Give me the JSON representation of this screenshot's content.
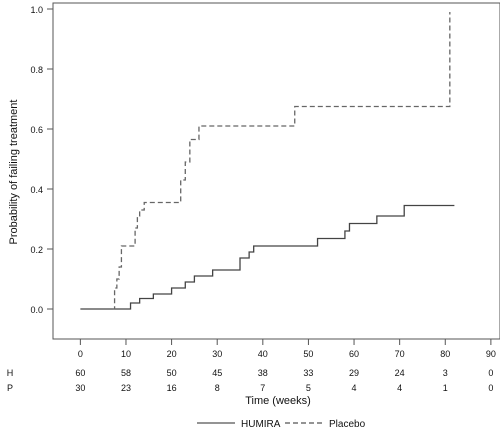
{
  "chart_data": {
    "type": "line",
    "step": true,
    "ylabel": "Probability of failing treatment",
    "xlabel": "Time (weeks)",
    "xlim": [
      -6,
      92
    ],
    "ylim": [
      -0.1,
      1.02
    ],
    "xticks": [
      0,
      10,
      20,
      30,
      40,
      50,
      60,
      70,
      80,
      90
    ],
    "yticks": [
      0.0,
      0.2,
      0.4,
      0.6,
      0.8,
      1.0
    ],
    "ytick_labels": [
      "0.0",
      "0.2",
      "0.4",
      "0.6",
      "0.8",
      "1.0"
    ],
    "grid": false,
    "legend_position": "bottom",
    "series": [
      {
        "name": "HUMIRA",
        "style": "solid",
        "color": "#444444",
        "x": [
          0,
          10,
          11,
          13,
          16,
          20,
          23,
          25,
          29,
          35,
          37,
          38,
          39,
          46,
          52,
          58,
          59,
          65,
          71,
          82
        ],
        "y": [
          0.0,
          0.0,
          0.02,
          0.035,
          0.05,
          0.07,
          0.09,
          0.11,
          0.13,
          0.17,
          0.19,
          0.21,
          0.21,
          0.21,
          0.235,
          0.26,
          0.285,
          0.31,
          0.345,
          0.345
        ]
      },
      {
        "name": "Placebo",
        "style": "dashed",
        "color": "#666666",
        "x": [
          7,
          7.5,
          8,
          8.5,
          9,
          11,
          12,
          12.5,
          13,
          14,
          21,
          22,
          23,
          24,
          26,
          29,
          46,
          47,
          60,
          80,
          81
        ],
        "y": [
          0.0,
          0.07,
          0.1,
          0.14,
          0.21,
          0.21,
          0.27,
          0.31,
          0.33,
          0.355,
          0.355,
          0.43,
          0.49,
          0.565,
          0.61,
          0.61,
          0.61,
          0.675,
          0.675,
          0.675,
          0.99
        ]
      }
    ],
    "risk_table": {
      "x": [
        0,
        10,
        20,
        30,
        40,
        50,
        60,
        70,
        80,
        90
      ],
      "rows": [
        {
          "label": "H",
          "values": [
            "60",
            "58",
            "50",
            "45",
            "38",
            "33",
            "29",
            "24",
            "3",
            "0"
          ]
        },
        {
          "label": "P",
          "values": [
            "30",
            "23",
            "16",
            "8",
            "7",
            "5",
            "4",
            "4",
            "1",
            "0"
          ]
        }
      ]
    },
    "legend": [
      {
        "name": "HUMIRA",
        "style": "solid"
      },
      {
        "name": "Placebo",
        "style": "dashed"
      }
    ]
  }
}
